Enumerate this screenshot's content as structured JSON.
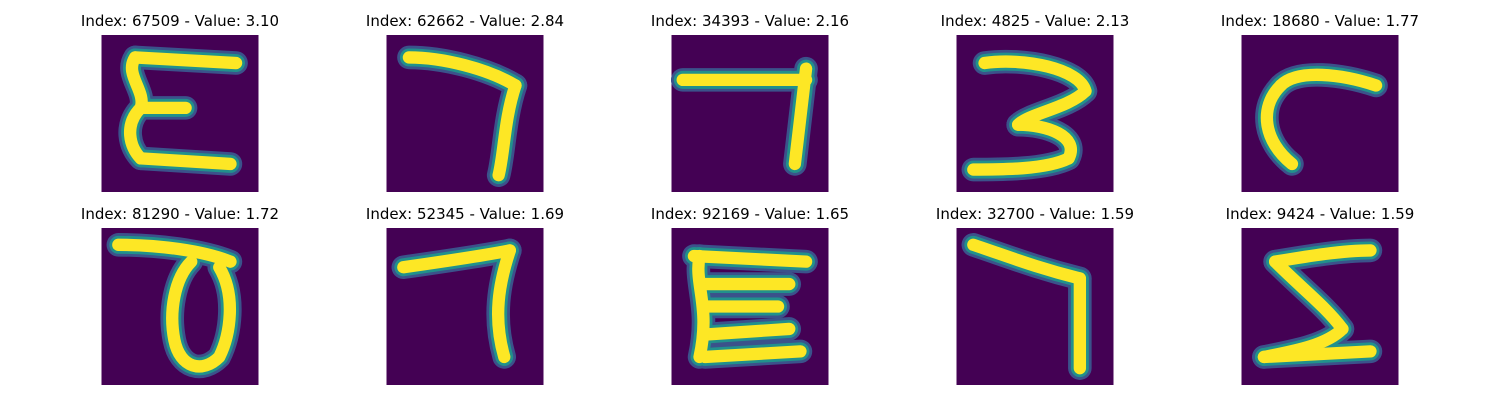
{
  "colors": {
    "background": "#440154",
    "stroke_core": "#fde725",
    "stroke_mid": "#21918c",
    "stroke_edge": "#3b528b"
  },
  "panels": [
    {
      "title": "Index: 67509 - Value: 3.10",
      "glyph": "E"
    },
    {
      "title": "Index: 62662 - Value: 2.84",
      "glyph": "7"
    },
    {
      "title": "Index: 34393 - Value: 2.16",
      "glyph": "7"
    },
    {
      "title": "Index: 4825 - Value: 2.13",
      "glyph": "3"
    },
    {
      "title": "Index: 18680 - Value: 1.77",
      "glyph": "C"
    },
    {
      "title": "Index: 81290 - Value: 1.72",
      "glyph": "70"
    },
    {
      "title": "Index: 52345 - Value: 1.69",
      "glyph": "7"
    },
    {
      "title": "Index: 92169 - Value: 1.65",
      "glyph": "E"
    },
    {
      "title": "Index: 32700 - Value: 1.59",
      "glyph": "7"
    },
    {
      "title": "Index: 9424 - Value: 1.59",
      "glyph": "S"
    }
  ]
}
